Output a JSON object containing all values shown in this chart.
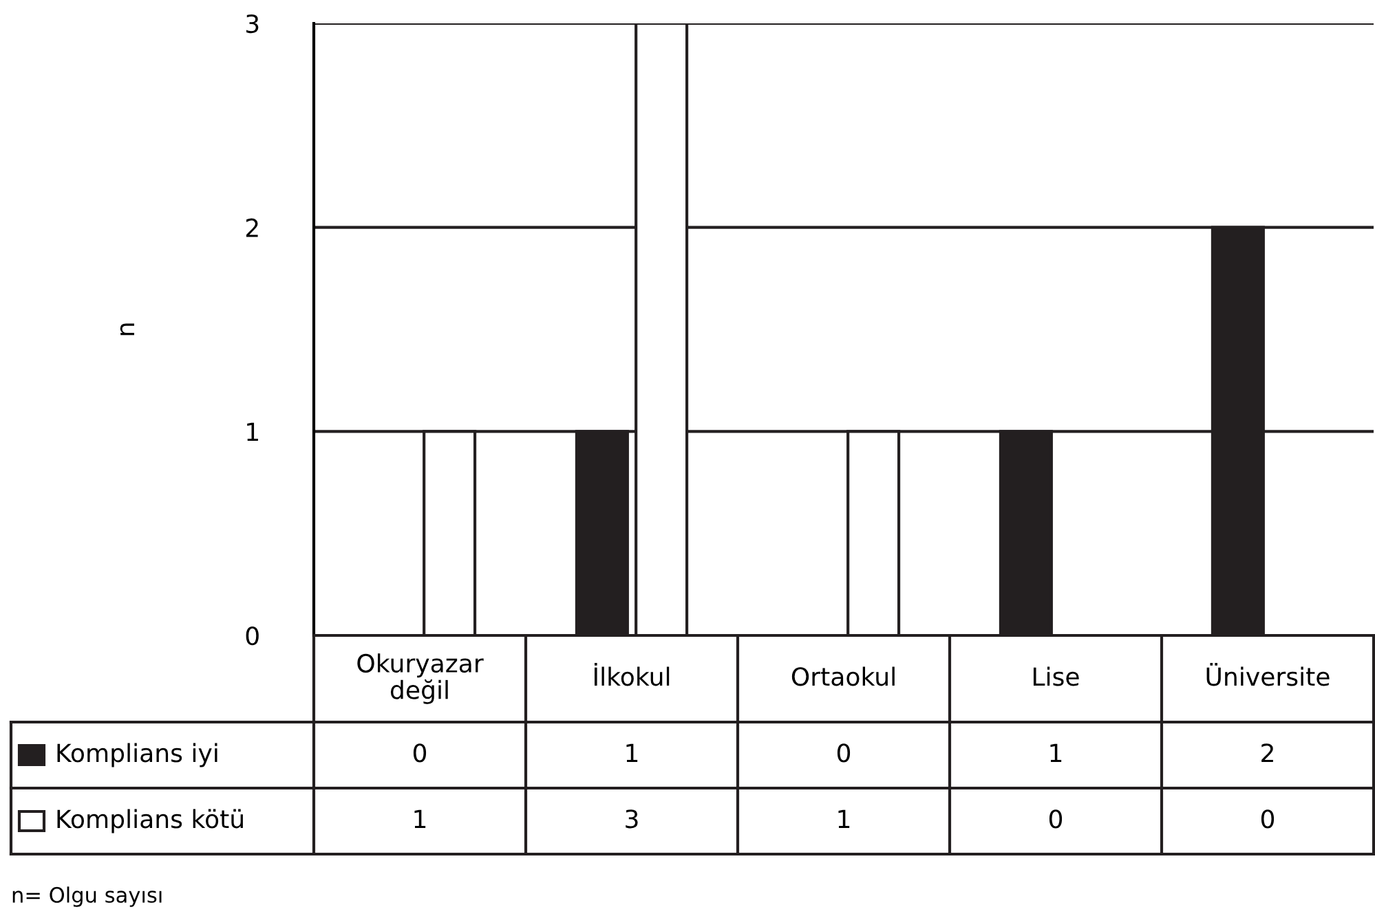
{
  "chart_data": {
    "type": "bar",
    "ylabel": "n",
    "categories": [
      "Okuryazar\ndeğil",
      "İlkokul",
      "Ortaokul",
      "Lise",
      "Üniversite"
    ],
    "series": [
      {
        "name": "Komplians iyi",
        "color": "#231f20",
        "values": [
          0,
          1,
          0,
          1,
          2
        ]
      },
      {
        "name": "Komplians kötü",
        "color": "#ffffff",
        "values": [
          1,
          3,
          1,
          0,
          0
        ]
      }
    ],
    "ylim": [
      0,
      3
    ],
    "yticks": [
      0,
      1,
      2,
      3
    ],
    "grid": "y",
    "data_labels": true,
    "legend": "bottom left",
    "annotations": [
      "n= Olgu sayısı"
    ]
  }
}
